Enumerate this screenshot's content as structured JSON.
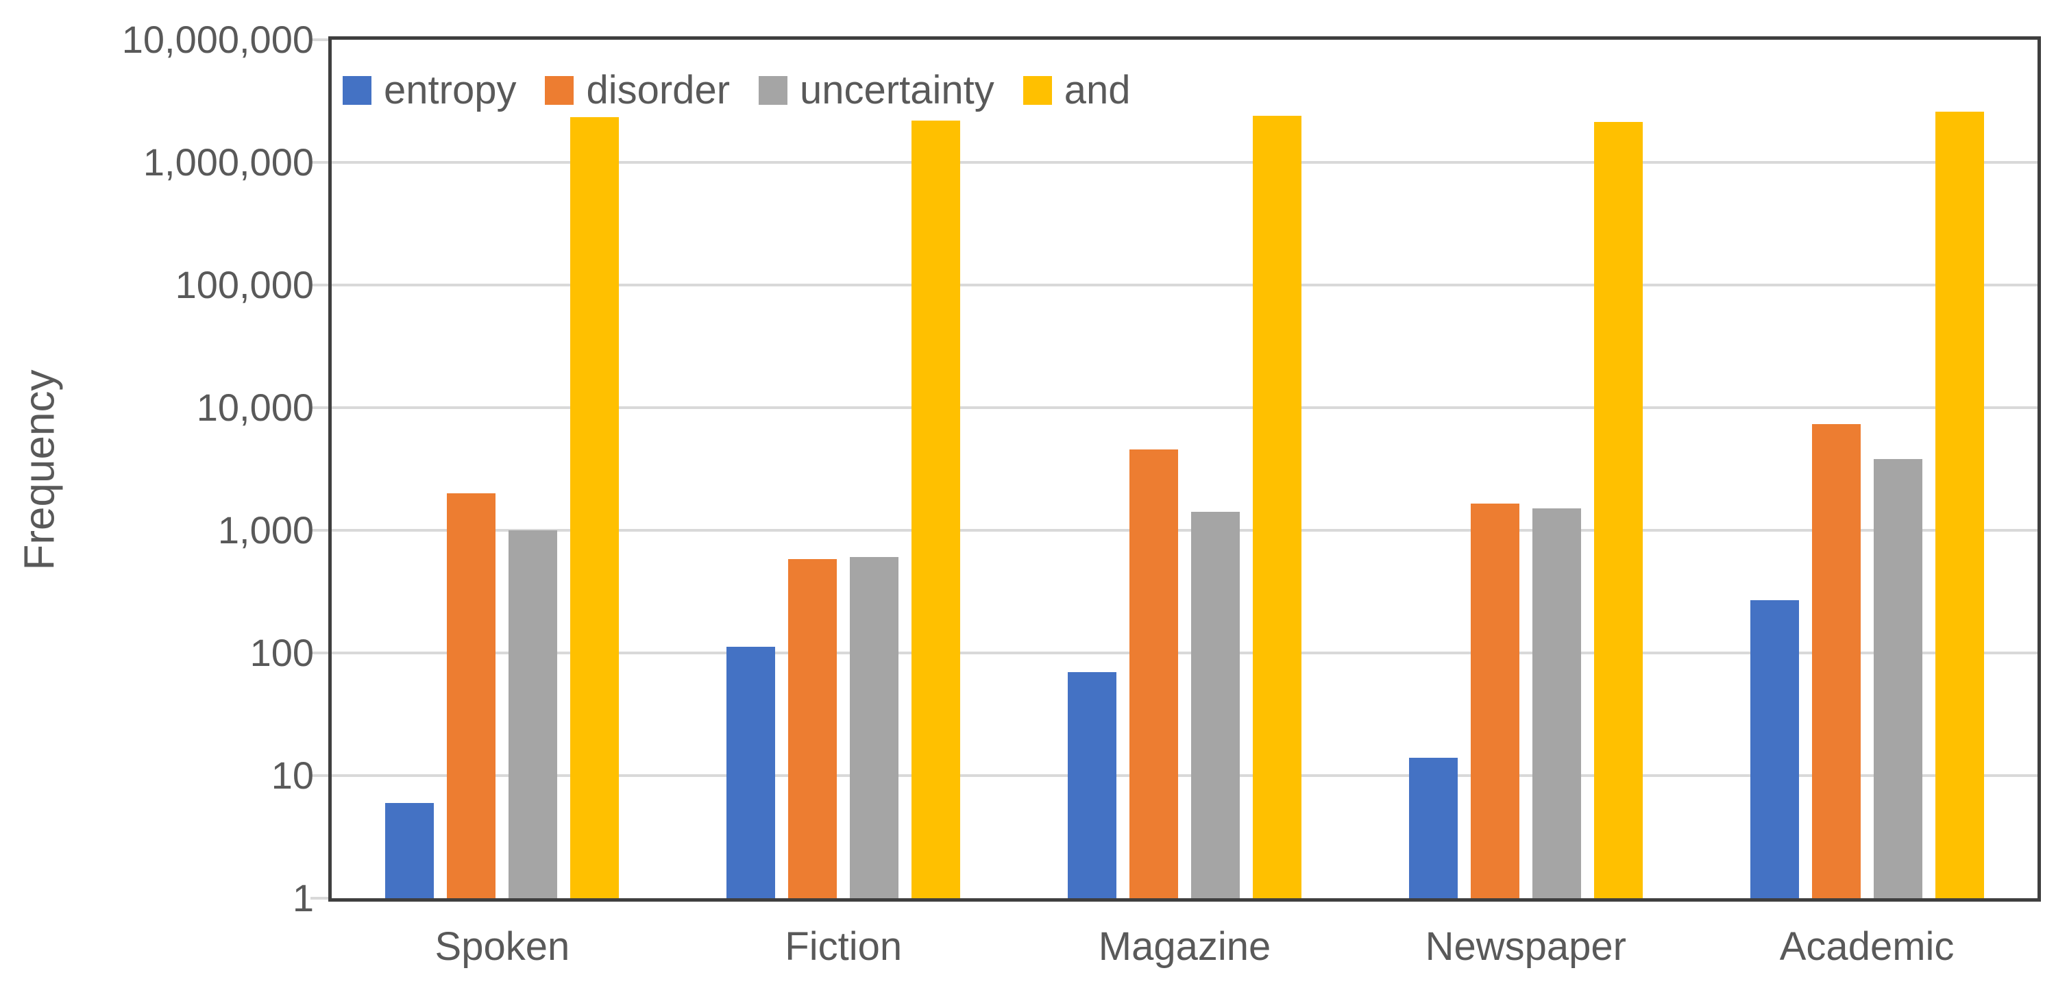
{
  "chart_data": {
    "type": "bar",
    "title": "",
    "xlabel": "",
    "ylabel": "Frequency",
    "y_scale": "log",
    "ylim": [
      1,
      10000000
    ],
    "y_ticks": [
      "1",
      "10",
      "100",
      "1,000",
      "10,000",
      "100,000",
      "1,000,000",
      "10,000,000"
    ],
    "grid": true,
    "legend_position": "top-left-inside",
    "categories": [
      "Spoken",
      "Fiction",
      "Magazine",
      "Newspaper",
      "Academic"
    ],
    "series": [
      {
        "name": "entropy",
        "color": "#4472C4",
        "values": [
          6,
          113,
          70,
          14,
          270
        ]
      },
      {
        "name": "disorder",
        "color": "#ED7D31",
        "values": [
          2000,
          585,
          4550,
          1650,
          7350
        ]
      },
      {
        "name": "uncertainty",
        "color": "#A5A5A5",
        "values": [
          1000,
          605,
          1420,
          1500,
          3800
        ]
      },
      {
        "name": "and",
        "color": "#FFC000",
        "values": [
          2350000,
          2200000,
          2400000,
          2150000,
          2600000
        ]
      }
    ],
    "colors": {
      "text": "#595959",
      "gridline": "#D9D9D9",
      "axis_border": "#3F3F3F",
      "background": "#FFFFFF"
    }
  }
}
